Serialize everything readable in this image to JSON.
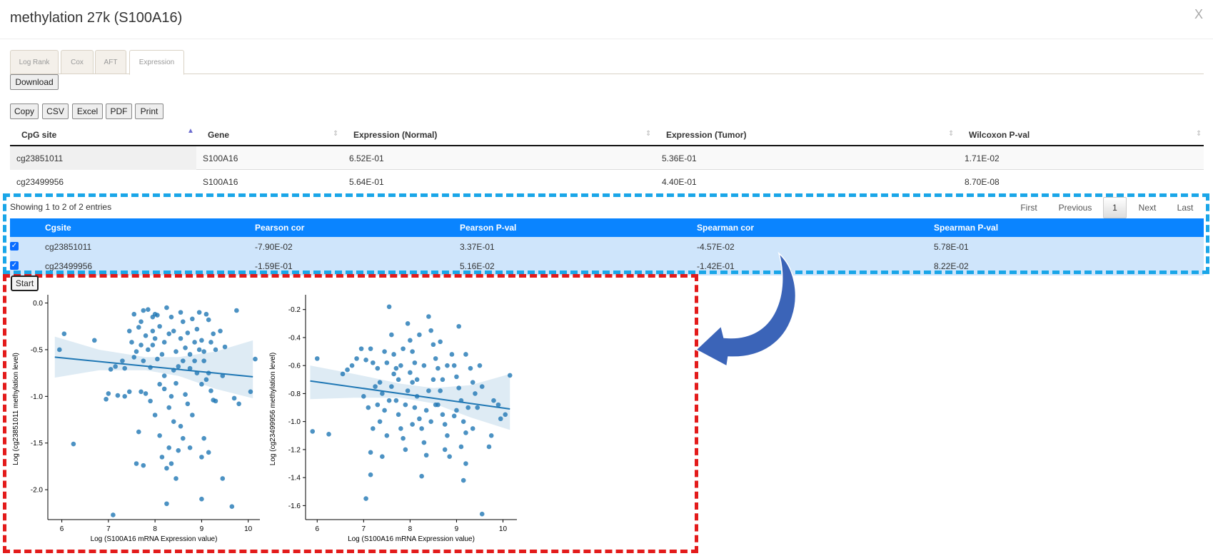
{
  "modal": {
    "title": "methylation 27k (S100A16)",
    "close_label": "X"
  },
  "tabs": [
    {
      "label": "Log Rank",
      "active": false
    },
    {
      "label": "Cox",
      "active": false
    },
    {
      "label": "AFT",
      "active": false
    },
    {
      "label": "Expression",
      "active": true
    }
  ],
  "download_label": "Download",
  "export_buttons": [
    "Copy",
    "CSV",
    "Excel",
    "PDF",
    "Print"
  ],
  "expr_table": {
    "headers": [
      "CpG site",
      "Gene",
      "Expression (Normal)",
      "Expression (Tumor)",
      "Wilcoxon P-val"
    ],
    "rows": [
      [
        "cg23851011",
        "S100A16",
        "6.52E-01",
        "5.36E-01",
        "1.71E-02"
      ],
      [
        "cg23499956",
        "S100A16",
        "5.64E-01",
        "4.40E-01",
        "8.70E-08"
      ]
    ]
  },
  "table_info": "Showing 1 to 2 of 2 entries",
  "pagination": {
    "first": "First",
    "previous": "Previous",
    "current": "1",
    "next": "Next",
    "last": "Last"
  },
  "corr_table": {
    "headers": [
      "Cgsite",
      "Pearson cor",
      "Pearson P-val",
      "Spearman cor",
      "Spearman P-val"
    ],
    "rows": [
      [
        "cg23851011",
        "-7.90E-02",
        "3.37E-01",
        "-4.57E-02",
        "5.78E-01"
      ],
      [
        "cg23499956",
        "-1.59E-01",
        "5.16E-02",
        "-1.42E-01",
        "8.22E-02"
      ]
    ]
  },
  "start_label": "Start",
  "colors": {
    "accent": "#0a84ff",
    "row_selected": "#cfe5fb",
    "point": "#1f77b4",
    "blue_dash": "#1aa6e8",
    "red_dash": "#e31b1b",
    "arrow": "#3b64b8"
  },
  "chart_data": [
    {
      "type": "scatter",
      "xlabel": "Log (S100A16 mRNA Expression value)",
      "ylabel": "Log (cg23851011 methylation level)",
      "xlim": [
        5.7,
        10.25
      ],
      "ylim": [
        -2.32,
        0.05
      ],
      "xticks": [
        6,
        7,
        8,
        9,
        10
      ],
      "yticks": [
        0.0,
        -0.5,
        -1.0,
        -1.5,
        -2.0
      ],
      "regression": {
        "x": [
          5.85,
          10.1
        ],
        "y": [
          -0.58,
          -0.79
        ]
      },
      "ci_band": {
        "x": [
          5.85,
          6.8,
          7.8,
          8.5,
          9.3,
          10.1
        ],
        "upper": [
          -0.36,
          -0.5,
          -0.58,
          -0.58,
          -0.52,
          -0.4
        ],
        "lower": [
          -0.8,
          -0.72,
          -0.72,
          -0.78,
          -0.92,
          -1.02
        ]
      },
      "points": [
        [
          5.95,
          -0.5
        ],
        [
          6.05,
          -0.33
        ],
        [
          6.25,
          -1.51
        ],
        [
          7.05,
          -0.71
        ],
        [
          7.15,
          -0.68
        ],
        [
          6.7,
          -0.4
        ],
        [
          7.3,
          -0.62
        ],
        [
          7.55,
          -0.58
        ],
        [
          7.35,
          -1.0
        ],
        [
          7.2,
          -0.99
        ],
        [
          6.95,
          -1.03
        ],
        [
          7.0,
          -0.97
        ],
        [
          7.1,
          -2.27
        ],
        [
          7.65,
          -1.38
        ],
        [
          7.75,
          -1.74
        ],
        [
          7.85,
          -0.07
        ],
        [
          7.95,
          -0.15
        ],
        [
          7.65,
          -0.26
        ],
        [
          7.8,
          -0.35
        ],
        [
          7.7,
          -0.45
        ],
        [
          7.6,
          -0.52
        ],
        [
          7.85,
          -0.5
        ],
        [
          7.75,
          -0.62
        ],
        [
          7.9,
          -0.69
        ],
        [
          7.7,
          -0.95
        ],
        [
          7.8,
          -0.97
        ],
        [
          7.9,
          -1.05
        ],
        [
          8.05,
          -0.13
        ],
        [
          8.1,
          -0.25
        ],
        [
          8.0,
          -0.38
        ],
        [
          8.2,
          -0.42
        ],
        [
          8.15,
          -0.55
        ],
        [
          8.05,
          -0.6
        ],
        [
          8.3,
          -0.33
        ],
        [
          8.2,
          -0.78
        ],
        [
          8.1,
          -0.87
        ],
        [
          8.3,
          -1.12
        ],
        [
          8.0,
          -1.2
        ],
        [
          8.4,
          -1.27
        ],
        [
          8.1,
          -1.42
        ],
        [
          8.3,
          -1.55
        ],
        [
          8.15,
          -1.65
        ],
        [
          8.25,
          -1.77
        ],
        [
          8.45,
          -1.88
        ],
        [
          8.35,
          -1.72
        ],
        [
          7.6,
          -1.72
        ],
        [
          8.55,
          -0.1
        ],
        [
          8.6,
          -0.2
        ],
        [
          8.7,
          -0.32
        ],
        [
          8.55,
          -0.38
        ],
        [
          8.65,
          -0.48
        ],
        [
          8.75,
          -0.55
        ],
        [
          8.6,
          -0.62
        ],
        [
          8.8,
          -0.17
        ],
        [
          8.9,
          -0.28
        ],
        [
          8.85,
          -0.42
        ],
        [
          8.95,
          -0.5
        ],
        [
          8.75,
          -0.7
        ],
        [
          8.9,
          -0.75
        ],
        [
          8.65,
          -0.98
        ],
        [
          8.7,
          -1.08
        ],
        [
          8.8,
          -1.2
        ],
        [
          8.55,
          -1.32
        ],
        [
          8.6,
          -1.45
        ],
        [
          8.75,
          -1.55
        ],
        [
          8.5,
          -1.58
        ],
        [
          9.0,
          -0.87
        ],
        [
          9.1,
          -0.12
        ],
        [
          9.15,
          -0.18
        ],
        [
          9.25,
          -0.33
        ],
        [
          9.2,
          -0.42
        ],
        [
          9.3,
          -0.5
        ],
        [
          9.05,
          -0.62
        ],
        [
          9.15,
          -0.75
        ],
        [
          9.2,
          -0.94
        ],
        [
          9.25,
          -1.04
        ],
        [
          9.3,
          -1.05
        ],
        [
          9.05,
          -1.45
        ],
        [
          9.15,
          -1.6
        ],
        [
          9.0,
          -1.65
        ],
        [
          9.0,
          -2.1
        ],
        [
          8.25,
          -2.15
        ],
        [
          9.5,
          -0.47
        ],
        [
          9.45,
          -1.88
        ],
        [
          9.65,
          -2.18
        ],
        [
          9.75,
          -0.08
        ],
        [
          9.7,
          -1.02
        ],
        [
          9.8,
          -1.08
        ],
        [
          10.05,
          -0.95
        ],
        [
          10.15,
          -0.6
        ],
        [
          9.45,
          -0.78
        ],
        [
          8.4,
          -0.72
        ],
        [
          8.45,
          -0.86
        ],
        [
          8.35,
          -1.0
        ],
        [
          8.35,
          -0.15
        ],
        [
          8.45,
          -0.52
        ],
        [
          7.45,
          -0.3
        ],
        [
          7.5,
          -0.42
        ],
        [
          7.45,
          -0.95
        ],
        [
          8.95,
          -0.1
        ],
        [
          9.0,
          -0.4
        ],
        [
          8.0,
          -0.12
        ],
        [
          7.95,
          -0.45
        ],
        [
          8.5,
          -0.68
        ],
        [
          9.05,
          -0.52
        ],
        [
          8.2,
          -0.92
        ],
        [
          7.7,
          -0.2
        ],
        [
          8.4,
          -0.3
        ],
        [
          7.75,
          -0.08
        ],
        [
          8.85,
          -0.62
        ],
        [
          9.1,
          -0.82
        ],
        [
          7.55,
          -0.12
        ],
        [
          8.25,
          -0.05
        ],
        [
          7.35,
          -0.7
        ],
        [
          9.4,
          -0.3
        ],
        [
          7.95,
          -0.3
        ]
      ]
    },
    {
      "type": "scatter",
      "xlabel": "Log (S100A16 mRNA Expression value)",
      "ylabel": "Log (cg23499956 methylation level)",
      "xlim": [
        5.75,
        10.3
      ],
      "ylim": [
        -1.7,
        -0.12
      ],
      "xticks": [
        6,
        7,
        8,
        9,
        10
      ],
      "yticks": [
        -0.2,
        -0.4,
        -0.6,
        -0.8,
        -1.0,
        -1.2,
        -1.4,
        -1.6
      ],
      "regression": {
        "x": [
          5.85,
          10.15
        ],
        "y": [
          -0.71,
          -0.91
        ]
      },
      "ci_band": {
        "x": [
          5.85,
          6.8,
          7.8,
          8.5,
          9.3,
          10.15
        ],
        "upper": [
          -0.6,
          -0.66,
          -0.73,
          -0.76,
          -0.74,
          -0.66
        ],
        "lower": [
          -0.84,
          -0.83,
          -0.83,
          -0.87,
          -0.97,
          -1.06
        ]
      },
      "points": [
        [
          5.9,
          -1.07
        ],
        [
          6.0,
          -0.55
        ],
        [
          6.25,
          -1.09
        ],
        [
          6.55,
          -0.66
        ],
        [
          6.65,
          -0.63
        ],
        [
          6.75,
          -0.6
        ],
        [
          6.85,
          -0.55
        ],
        [
          6.95,
          -0.48
        ],
        [
          7.05,
          -0.56
        ],
        [
          7.15,
          -0.48
        ],
        [
          7.2,
          -0.58
        ],
        [
          7.25,
          -0.75
        ],
        [
          7.0,
          -0.82
        ],
        [
          7.1,
          -0.9
        ],
        [
          7.2,
          -1.05
        ],
        [
          7.15,
          -1.22
        ],
        [
          7.05,
          -1.55
        ],
        [
          7.15,
          -1.38
        ],
        [
          7.3,
          -0.62
        ],
        [
          7.35,
          -0.72
        ],
        [
          7.4,
          -0.8
        ],
        [
          7.45,
          -0.92
        ],
        [
          7.35,
          -1.0
        ],
        [
          7.5,
          -1.1
        ],
        [
          7.4,
          -1.25
        ],
        [
          7.55,
          -0.18
        ],
        [
          7.6,
          -0.38
        ],
        [
          7.65,
          -0.52
        ],
        [
          7.7,
          -0.62
        ],
        [
          7.75,
          -0.7
        ],
        [
          7.6,
          -0.75
        ],
        [
          7.7,
          -0.85
        ],
        [
          7.75,
          -0.95
        ],
        [
          7.8,
          -1.05
        ],
        [
          7.85,
          -1.12
        ],
        [
          7.9,
          -1.2
        ],
        [
          7.95,
          -0.3
        ],
        [
          8.0,
          -0.42
        ],
        [
          8.05,
          -0.5
        ],
        [
          8.1,
          -0.58
        ],
        [
          8.0,
          -0.65
        ],
        [
          8.05,
          -0.72
        ],
        [
          7.95,
          -0.78
        ],
        [
          8.15,
          -0.82
        ],
        [
          8.1,
          -0.9
        ],
        [
          8.2,
          -0.98
        ],
        [
          8.25,
          -1.05
        ],
        [
          8.3,
          -1.15
        ],
        [
          8.35,
          -1.24
        ],
        [
          8.25,
          -1.39
        ],
        [
          8.4,
          -0.25
        ],
        [
          8.45,
          -0.35
        ],
        [
          8.5,
          -0.45
        ],
        [
          8.55,
          -0.55
        ],
        [
          8.6,
          -0.62
        ],
        [
          8.5,
          -0.7
        ],
        [
          8.65,
          -0.78
        ],
        [
          8.6,
          -0.88
        ],
        [
          8.7,
          -0.95
        ],
        [
          8.75,
          -1.02
        ],
        [
          8.8,
          -1.1
        ],
        [
          8.75,
          -1.2
        ],
        [
          8.85,
          -1.25
        ],
        [
          8.9,
          -0.52
        ],
        [
          8.95,
          -0.6
        ],
        [
          9.0,
          -0.68
        ],
        [
          9.05,
          -0.76
        ],
        [
          9.1,
          -0.85
        ],
        [
          9.0,
          -0.92
        ],
        [
          9.15,
          -1.0
        ],
        [
          9.2,
          -1.08
        ],
        [
          9.1,
          -1.18
        ],
        [
          9.2,
          -1.3
        ],
        [
          9.15,
          -1.42
        ],
        [
          9.05,
          -0.32
        ],
        [
          9.2,
          -0.52
        ],
        [
          9.3,
          -0.62
        ],
        [
          9.35,
          -0.72
        ],
        [
          9.4,
          -0.8
        ],
        [
          9.45,
          -0.9
        ],
        [
          9.5,
          -0.6
        ],
        [
          9.55,
          -1.66
        ],
        [
          9.7,
          -1.18
        ],
        [
          9.75,
          -1.1
        ],
        [
          9.8,
          -0.85
        ],
        [
          9.9,
          -0.88
        ],
        [
          9.95,
          -0.98
        ],
        [
          10.05,
          -0.95
        ],
        [
          10.15,
          -0.67
        ],
        [
          8.3,
          -0.6
        ],
        [
          8.4,
          -0.78
        ],
        [
          7.5,
          -0.58
        ],
        [
          7.55,
          -0.85
        ],
        [
          7.85,
          -0.48
        ],
        [
          8.65,
          -0.43
        ],
        [
          8.8,
          -0.6
        ],
        [
          8.2,
          -0.38
        ],
        [
          8.15,
          -0.7
        ],
        [
          7.8,
          -0.6
        ],
        [
          9.25,
          -0.9
        ],
        [
          9.55,
          -0.75
        ],
        [
          8.95,
          -0.96
        ],
        [
          8.55,
          -0.88
        ],
        [
          8.35,
          -0.92
        ],
        [
          7.65,
          -0.66
        ],
        [
          8.45,
          -1.0
        ],
        [
          7.9,
          -0.88
        ],
        [
          7.3,
          -0.88
        ],
        [
          8.05,
          -1.02
        ],
        [
          8.7,
          -0.7
        ],
        [
          9.35,
          -1.05
        ],
        [
          7.45,
          -0.5
        ]
      ]
    }
  ]
}
